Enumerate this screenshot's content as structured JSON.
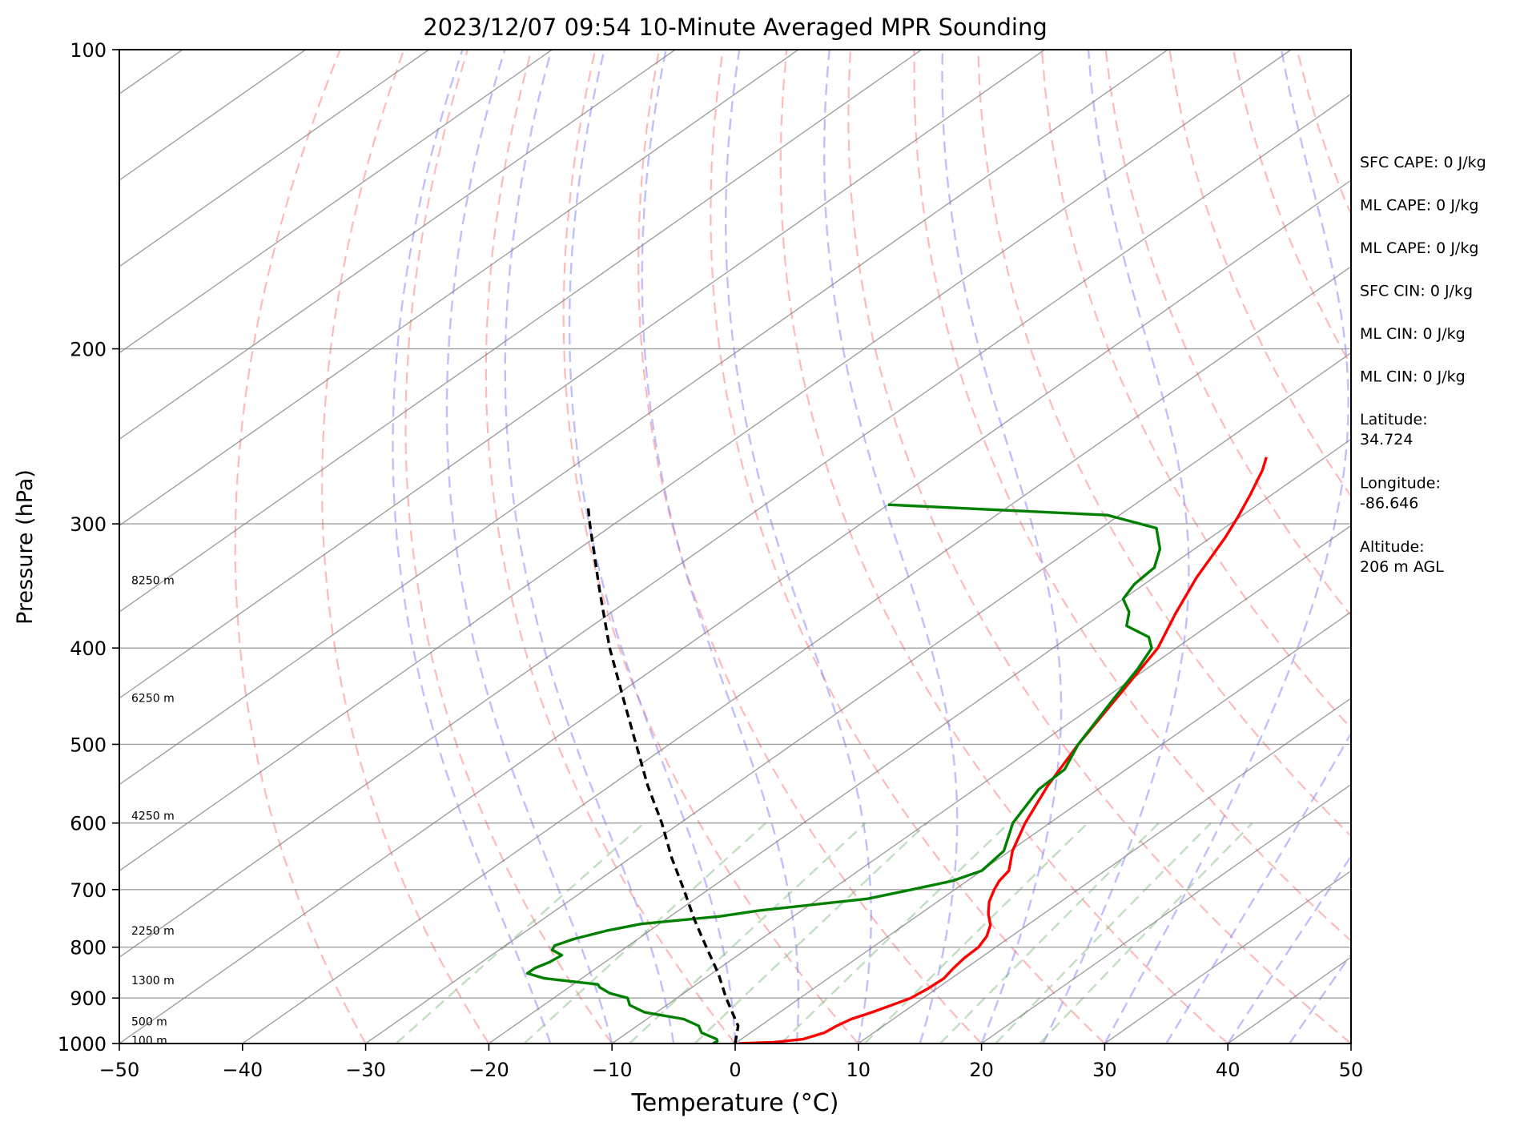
{
  "chart_data": {
    "type": "line",
    "subtype": "skew-t log-p sounding",
    "title": "2023/12/07 09:54 10-Minute Averaged MPR Sounding",
    "xlabel": "Temperature (°C)",
    "ylabel": "Pressure (hPa)",
    "xlim": [
      -50,
      50
    ],
    "ylim": [
      1000,
      100
    ],
    "y_scale": "log",
    "grid": true,
    "x_ticks": [
      "−50",
      "−40",
      "−30",
      "−20",
      "−10",
      "0",
      "10",
      "20",
      "30",
      "40",
      "50"
    ],
    "x_tick_values": [
      -50,
      -40,
      -30,
      -20,
      -10,
      0,
      10,
      20,
      30,
      40,
      50
    ],
    "y_ticks": [
      "100",
      "200",
      "300",
      "400",
      "500",
      "600",
      "700",
      "800",
      "900",
      "1000"
    ],
    "y_tick_values": [
      100,
      200,
      300,
      400,
      500,
      600,
      700,
      800,
      900,
      1000
    ],
    "colors": {
      "temperature": "#ff0000",
      "dewpoint": "#008000",
      "parcel": "#000000",
      "dry_adiabat": "#ff8080",
      "moist_adiabat": "#8080ff",
      "mixing_ratio": "#80c080",
      "isotherm": "#808080",
      "isobar": "#808080"
    },
    "series": [
      {
        "key": "temperature",
        "points": [
          [
            1000,
            0.3
          ],
          [
            997,
            3
          ],
          [
            990,
            5
          ],
          [
            975,
            6
          ],
          [
            960,
            6.2
          ],
          [
            945,
            6.6
          ],
          [
            930,
            7.5
          ],
          [
            910,
            8.5
          ],
          [
            900,
            9
          ],
          [
            880,
            9.3
          ],
          [
            860,
            9.4
          ],
          [
            840,
            9
          ],
          [
            820,
            8.7
          ],
          [
            800,
            8.6
          ],
          [
            780,
            8
          ],
          [
            760,
            7
          ],
          [
            740,
            5.5
          ],
          [
            720,
            4.2
          ],
          [
            700,
            3.2
          ],
          [
            686,
            2.6
          ],
          [
            670,
            2.2
          ],
          [
            640,
            0.2
          ],
          [
            600,
            -2
          ],
          [
            550,
            -4.5
          ],
          [
            500,
            -6.8
          ],
          [
            450,
            -9
          ],
          [
            400,
            -11.5
          ],
          [
            370,
            -14
          ],
          [
            340,
            -16.5
          ],
          [
            310,
            -18.8
          ],
          [
            295,
            -20.2
          ],
          [
            280,
            -21.8
          ],
          [
            265,
            -23.6
          ],
          [
            257,
            -24.8
          ]
        ]
      },
      {
        "key": "dewpoint",
        "points": [
          [
            1000,
            -1.8
          ],
          [
            995,
            -1.7
          ],
          [
            990,
            -2
          ],
          [
            975,
            -4
          ],
          [
            960,
            -5
          ],
          [
            945,
            -7
          ],
          [
            930,
            -11
          ],
          [
            915,
            -13
          ],
          [
            900,
            -14
          ],
          [
            890,
            -16
          ],
          [
            878,
            -17.5
          ],
          [
            872,
            -18
          ],
          [
            860,
            -23
          ],
          [
            850,
            -25
          ],
          [
            840,
            -25
          ],
          [
            828,
            -24.5
          ],
          [
            815,
            -24.3
          ],
          [
            805,
            -25.7
          ],
          [
            797,
            -26
          ],
          [
            785,
            -25.2
          ],
          [
            770,
            -23.5
          ],
          [
            758,
            -21.5
          ],
          [
            745,
            -16
          ],
          [
            735,
            -13.5
          ],
          [
            715,
            -6
          ],
          [
            700,
            -3.5
          ],
          [
            686,
            -1.2
          ],
          [
            670,
            0
          ],
          [
            640,
            -0.5
          ],
          [
            600,
            -3
          ],
          [
            555,
            -4.8
          ],
          [
            530,
            -5
          ],
          [
            500,
            -6.8
          ],
          [
            450,
            -9.2
          ],
          [
            420,
            -10.7
          ],
          [
            400,
            -12
          ],
          [
            390,
            -13.5
          ],
          [
            380,
            -16.6
          ],
          [
            368,
            -18
          ],
          [
            357,
            -20
          ],
          [
            345,
            -20.8
          ],
          [
            332,
            -21.1
          ],
          [
            318,
            -22.8
          ],
          [
            303,
            -25.5
          ],
          [
            294,
            -31
          ],
          [
            287,
            -50
          ]
        ]
      },
      {
        "key": "parcel",
        "points": [
          [
            1000,
            0
          ],
          [
            960,
            -1.8
          ],
          [
            900,
            -6
          ],
          [
            850,
            -9.5
          ],
          [
            800,
            -13.5
          ],
          [
            750,
            -17.7
          ],
          [
            700,
            -22
          ],
          [
            650,
            -26.7
          ],
          [
            600,
            -31.5
          ],
          [
            550,
            -37
          ],
          [
            500,
            -42.7
          ],
          [
            450,
            -49
          ],
          [
            400,
            -56
          ],
          [
            350,
            -63.5
          ],
          [
            300,
            -72
          ],
          [
            289,
            -74
          ]
        ]
      }
    ],
    "height_labels": [
      {
        "text": "100 m",
        "p": 993
      },
      {
        "text": "500 m",
        "p": 950
      },
      {
        "text": "1300 m",
        "p": 864
      },
      {
        "text": "2250 m",
        "p": 770
      },
      {
        "text": "4250 m",
        "p": 590
      },
      {
        "text": "6250 m",
        "p": 449
      },
      {
        "text": "8250 m",
        "p": 342
      }
    ],
    "annotations": [
      "SFC CAPE: 0 J/kg",
      "ML CAPE: 0 J/kg",
      "ML CAPE: 0 J/kg",
      "SFC CIN: 0 J/kg",
      "ML CIN: 0 J/kg",
      "ML CIN: 0 J/kg",
      "Latitude:\n34.724",
      "Longitude:\n-86.646",
      "Altitude:\n206 m AGL"
    ]
  }
}
